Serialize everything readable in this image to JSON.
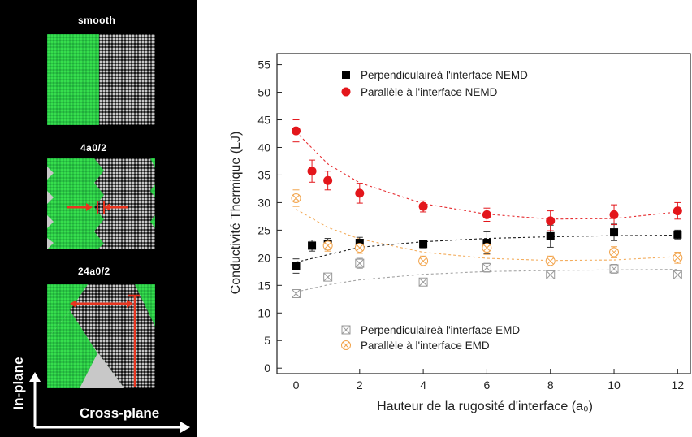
{
  "panels": {
    "smooth_label": "smooth",
    "p2_label": "4a0/2",
    "p3_label": "24a0/2",
    "axis_in_plane": "In-plane",
    "axis_cross_plane": "Cross-plane"
  },
  "colors": {
    "green": "#2fd24a",
    "grey_atoms": "#c8c8c8",
    "red_arrow": "#e8351f",
    "nemd_perp": "#000000",
    "nemd_para": "#e3161b",
    "emd_perp": "#9a9a9a",
    "emd_para": "#f2a34a"
  },
  "chart_data": {
    "type": "scatter",
    "xlabel": "Hauteur de la rugosité d'interface (a₀)",
    "ylabel": "Conductivité Thermique (LJ)",
    "xlim": [
      -0.6,
      12.4
    ],
    "ylim": [
      -1,
      57
    ],
    "xticks": [
      0,
      2,
      4,
      6,
      8,
      10,
      12
    ],
    "yticks": [
      0,
      5,
      10,
      15,
      20,
      25,
      30,
      35,
      40,
      45,
      50,
      55
    ],
    "legend_top": [
      "Perpendiculaireà l'interface NEMD",
      "Parallèle à l'interface NEMD"
    ],
    "legend_bottom": [
      "Perpendiculaireà l'interface EMD",
      "Parallèle à l'interface EMD"
    ],
    "series": [
      {
        "name": "Perpendiculaireà l'interface NEMD",
        "marker": "square",
        "color": "#000000",
        "x": [
          0,
          0.5,
          1,
          2,
          4,
          6,
          8,
          10,
          12
        ],
        "y": [
          18.5,
          22.2,
          22.5,
          22.7,
          22.5,
          22.7,
          23.9,
          24.6,
          24.2
        ],
        "err": [
          1.3,
          1.0,
          1.0,
          1.0,
          0.7,
          2.0,
          2.0,
          1.5,
          0.8
        ],
        "fit_x": [
          0,
          2,
          4,
          6,
          8,
          10,
          12
        ],
        "fit_y": [
          19.2,
          21.9,
          22.9,
          23.5,
          23.8,
          24.0,
          24.1
        ]
      },
      {
        "name": "Parallèle à l'interface NEMD",
        "marker": "circle",
        "color": "#e3161b",
        "x": [
          0,
          0.5,
          1,
          2,
          4,
          6,
          8,
          10,
          12
        ],
        "y": [
          43.0,
          35.7,
          34.0,
          31.7,
          29.3,
          27.8,
          26.7,
          27.8,
          28.5
        ],
        "err": [
          2.0,
          2.0,
          1.7,
          1.8,
          1.0,
          1.2,
          1.8,
          1.8,
          1.5
        ],
        "fit_x": [
          0,
          1,
          2,
          4,
          6,
          8,
          10,
          12
        ],
        "fit_y": [
          42.8,
          37.0,
          33.6,
          29.8,
          27.9,
          27.0,
          27.1,
          28.3
        ]
      },
      {
        "name": "Perpendiculaireà l'interface EMD",
        "marker": "crossed-square",
        "color": "#9a9a9a",
        "x": [
          0,
          1,
          2,
          4,
          6,
          8,
          10,
          12
        ],
        "y": [
          13.5,
          16.5,
          19.0,
          15.6,
          18.2,
          16.9,
          18.0,
          16.9
        ],
        "err": [
          0.6,
          0.7,
          0.9,
          0.6,
          0.8,
          0.7,
          0.8,
          0.7
        ],
        "fit_x": [
          0,
          1,
          2,
          4,
          6,
          8,
          10,
          12
        ],
        "fit_y": [
          13.8,
          15.1,
          16.0,
          17.0,
          17.5,
          17.7,
          17.8,
          17.9
        ]
      },
      {
        "name": "Parallèle à l'interface EMD",
        "marker": "crossed-circle",
        "color": "#f2a34a",
        "x": [
          0,
          1,
          2,
          4,
          6,
          8,
          10,
          12
        ],
        "y": [
          30.8,
          22.2,
          21.8,
          19.4,
          21.8,
          19.4,
          21.0,
          20.0
        ],
        "err": [
          1.5,
          1.0,
          1.0,
          0.9,
          1.2,
          0.9,
          1.0,
          1.0
        ],
        "fit_x": [
          0,
          1,
          2,
          4,
          6,
          8,
          10,
          12
        ],
        "fit_y": [
          28.8,
          25.5,
          23.4,
          21.0,
          19.9,
          19.5,
          19.6,
          20.2
        ]
      }
    ]
  }
}
